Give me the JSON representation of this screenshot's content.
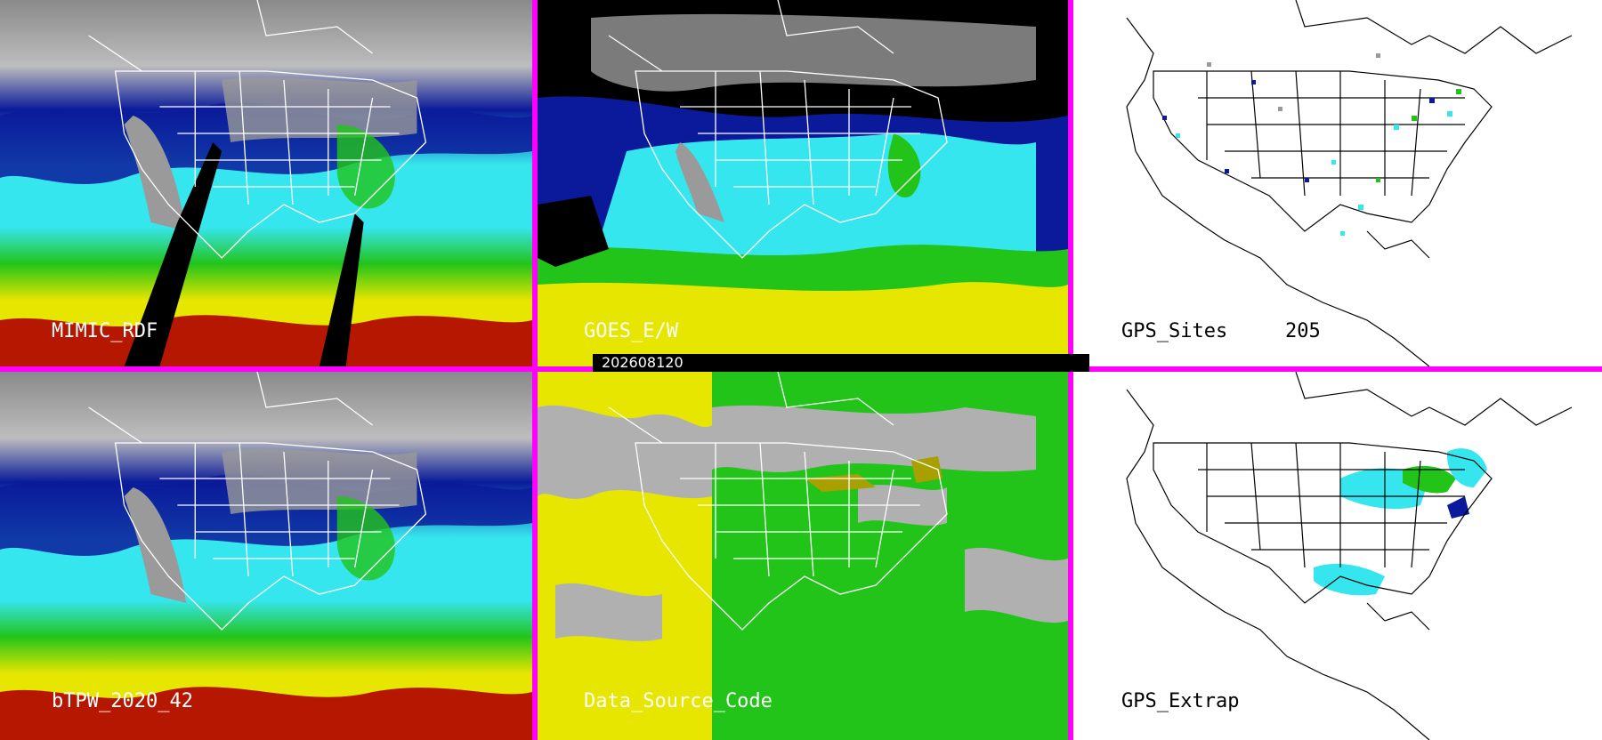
{
  "panels": {
    "mimic": {
      "label": "MIMIC_RDF"
    },
    "goes": {
      "label": "GOES_E/W"
    },
    "gps_sites": {
      "label": "GPS_Sites",
      "count": "205"
    },
    "btpw": {
      "label": "bTPW_2020_42"
    },
    "data_source": {
      "label": "Data_Source_Code"
    },
    "gps_extrap": {
      "label": "GPS_Extrap"
    }
  },
  "timestamp": "202608120",
  "colors": {
    "divider": "#ff00ff",
    "gray_land": "#9a9a9a",
    "dark_blue": "#0a1a9a",
    "blue": "#2850d8",
    "cyan": "#36e6ee",
    "green": "#22c41a",
    "yellow": "#e6e600",
    "dark_red": "#b00000",
    "olive": "#a8a000",
    "silver": "#b0b0b0"
  }
}
